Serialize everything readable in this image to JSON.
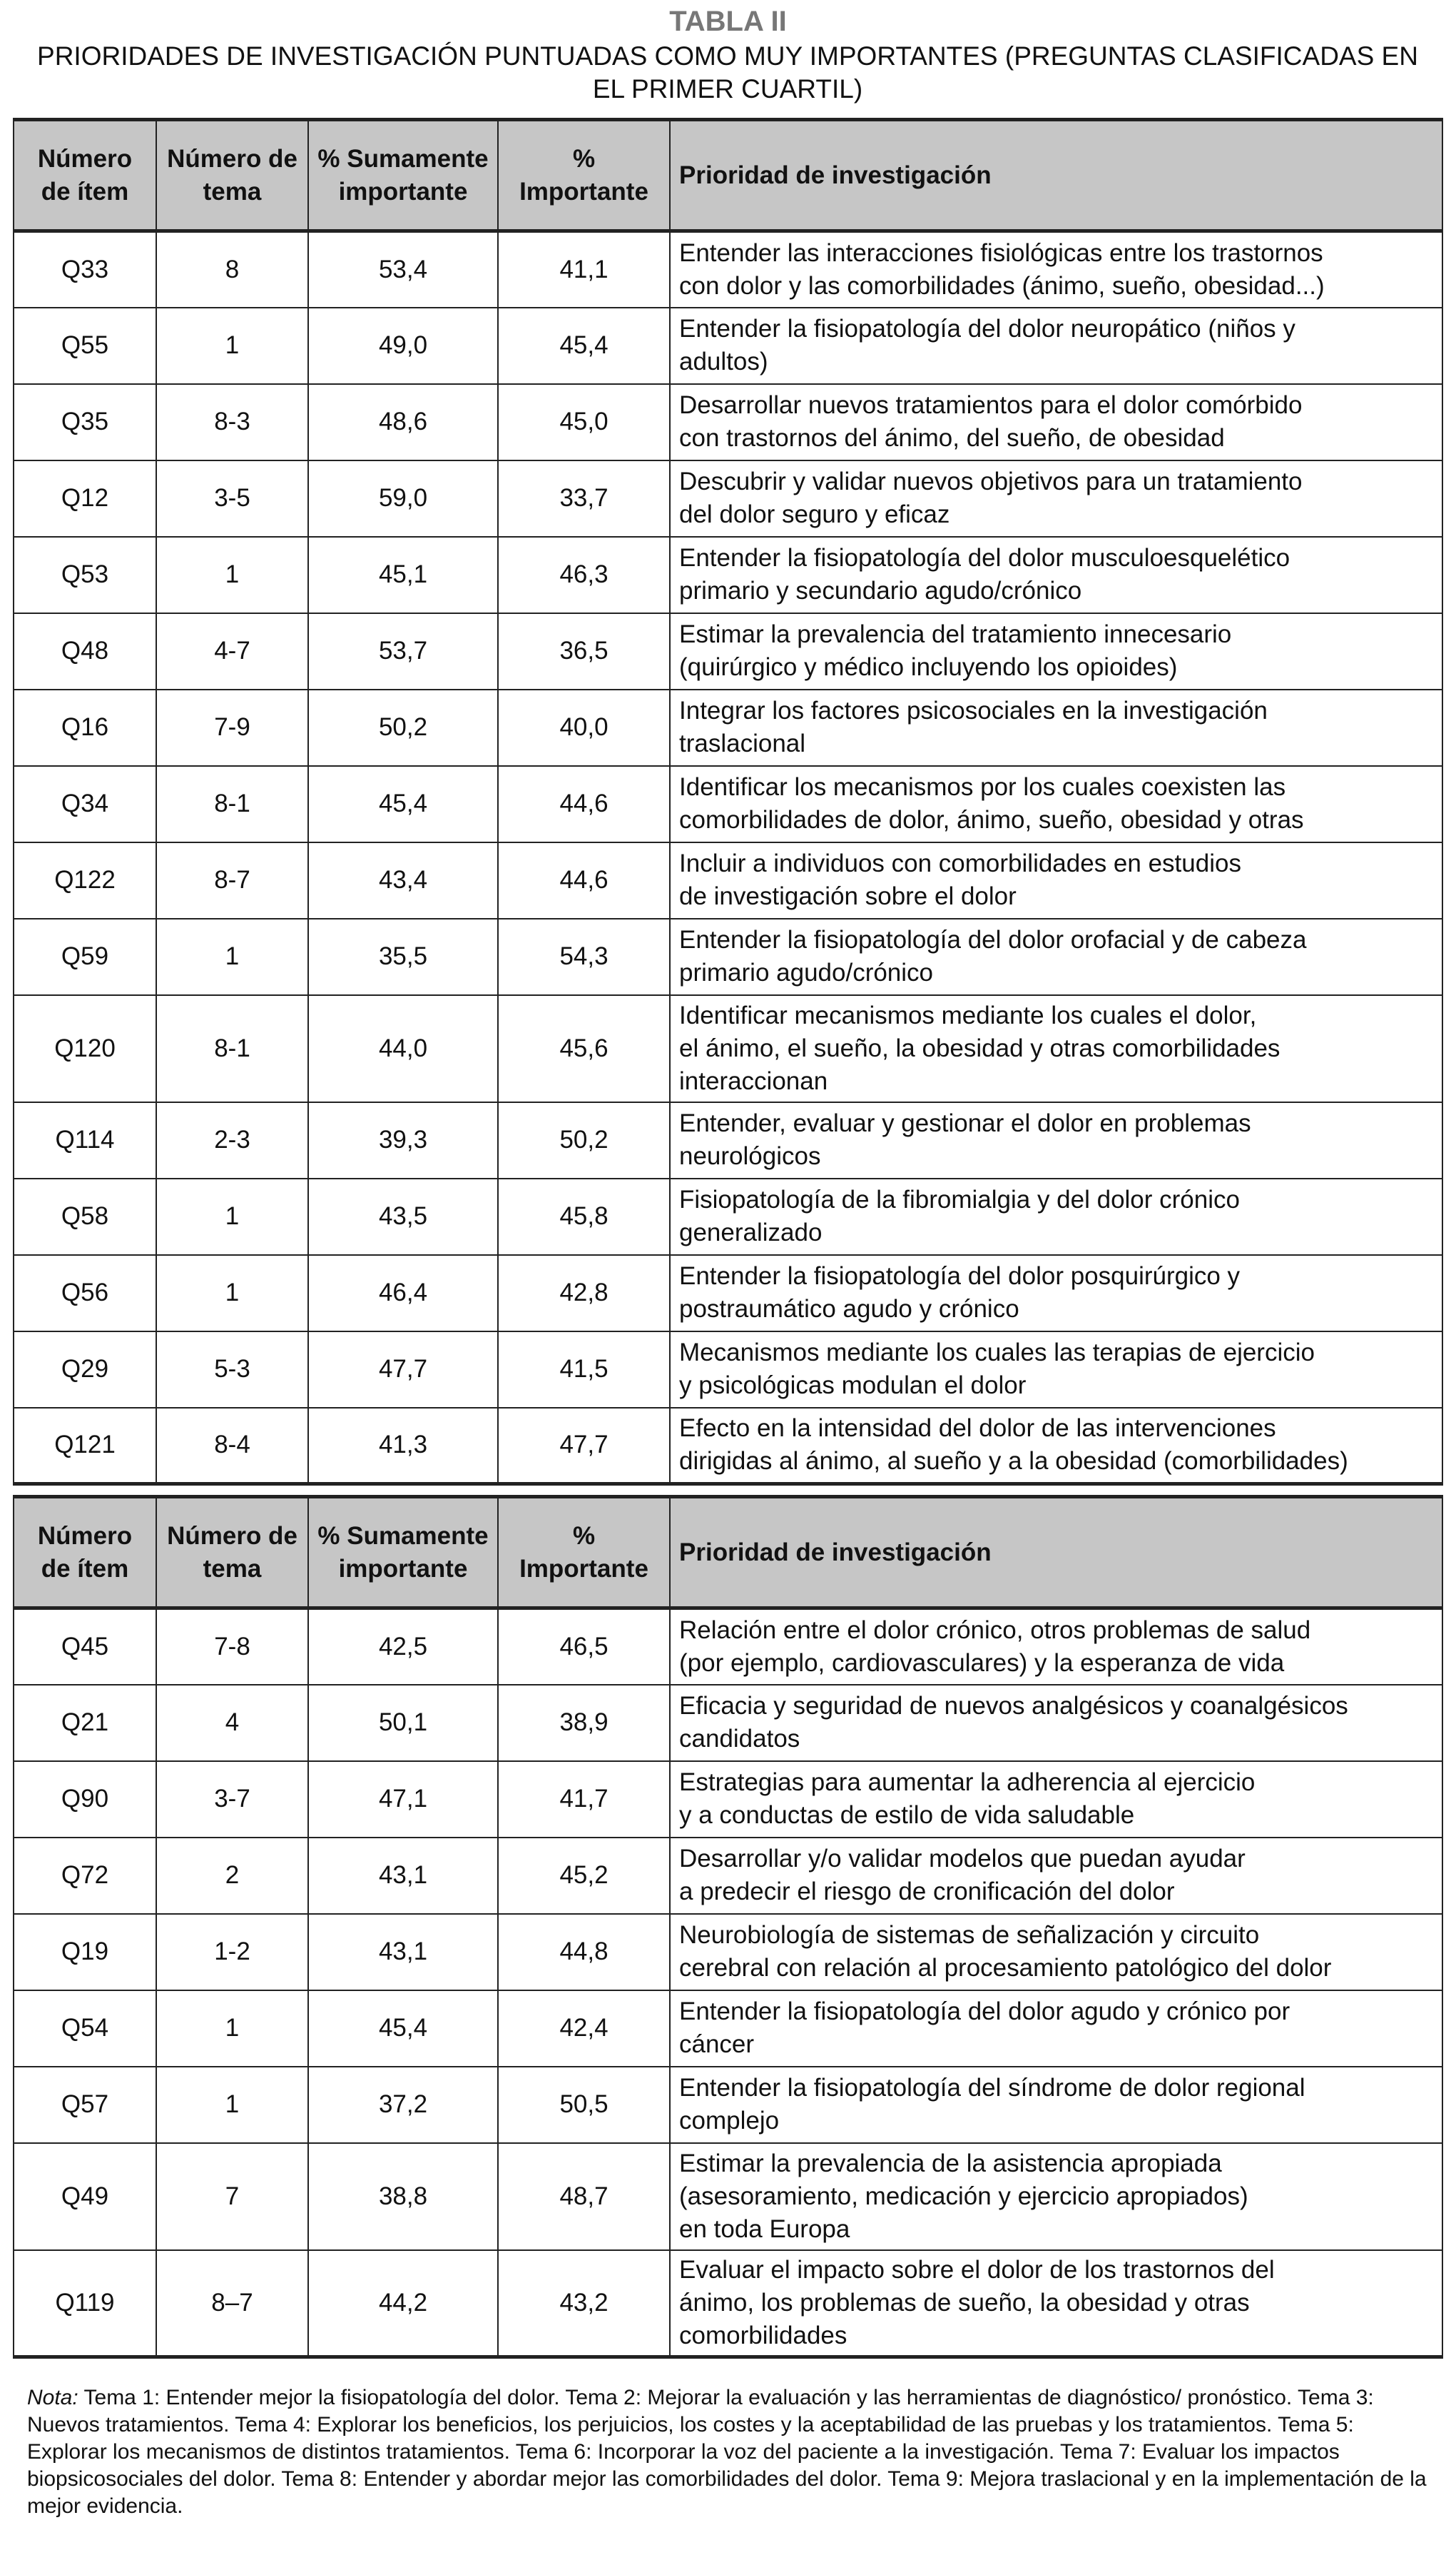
{
  "title": "TABLA II",
  "subtitle": "PRIORIDADES DE INVESTIGACIÓN PUNTUADAS COMO MUY IMPORTANTES (PREGUNTAS CLASIFICADAS EN EL PRIMER CUARTIL)",
  "headers": [
    "Número de ítem",
    "Número de tema",
    "% Sumamente importante",
    "% Importante",
    "Prioridad de investigación"
  ],
  "table1": [
    [
      "Q33",
      "8",
      "53,4",
      "41,1",
      "Entender las interacciones fisiológicas entre los trastornos\ncon dolor y las comorbilidades (ánimo, sueño, obesidad...)"
    ],
    [
      "Q55",
      "1",
      "49,0",
      "45,4",
      "Entender la fisiopatología del dolor neuropático (niños y\nadultos)"
    ],
    [
      "Q35",
      "8-3",
      "48,6",
      "45,0",
      "Desarrollar nuevos tratamientos para el dolor comórbido\ncon trastornos del ánimo, del sueño, de obesidad"
    ],
    [
      "Q12",
      "3-5",
      "59,0",
      "33,7",
      "Descubrir y validar nuevos objetivos para un tratamiento\ndel dolor seguro y eficaz"
    ],
    [
      "Q53",
      "1",
      "45,1",
      "46,3",
      "Entender la fisiopatología del dolor musculoesquelético\nprimario y secundario agudo/crónico"
    ],
    [
      "Q48",
      "4-7",
      "53,7",
      "36,5",
      "Estimar la prevalencia del tratamiento innecesario\n(quirúrgico y médico incluyendo los opioides)"
    ],
    [
      "Q16",
      "7-9",
      "50,2",
      "40,0",
      "Integrar los factores psicosociales en la investigación\ntraslacional"
    ],
    [
      "Q34",
      "8-1",
      "45,4",
      "44,6",
      "Identificar los mecanismos por los cuales coexisten las\ncomorbilidades de dolor, ánimo, sueño, obesidad y otras"
    ],
    [
      "Q122",
      "8-7",
      "43,4",
      "44,6",
      "Incluir a individuos con comorbilidades en estudios\nde investigación sobre el dolor"
    ],
    [
      "Q59",
      "1",
      "35,5",
      "54,3",
      "Entender la fisiopatología del dolor orofacial y de cabeza\nprimario agudo/crónico"
    ],
    [
      "Q120",
      "8-1",
      "44,0",
      "45,6",
      "Identificar mecanismos mediante los cuales el dolor,\nel ánimo, el sueño, la obesidad y otras comorbilidades\ninteraccionan"
    ],
    [
      "Q114",
      "2-3",
      "39,3",
      "50,2",
      "Entender, evaluar y gestionar el dolor en problemas\nneurológicos"
    ],
    [
      "Q58",
      "1",
      "43,5",
      "45,8",
      "Fisiopatología de la fibromialgia y del dolor crónico\ngeneralizado"
    ],
    [
      "Q56",
      "1",
      "46,4",
      "42,8",
      "Entender la fisiopatología del dolor posquirúrgico y\npostraumático agudo y crónico"
    ],
    [
      "Q29",
      "5-3",
      "47,7",
      "41,5",
      "Mecanismos mediante los cuales las terapias de ejercicio\ny psicológicas modulan el dolor"
    ],
    [
      "Q121",
      "8-4",
      "41,3",
      "47,7",
      "Efecto en la intensidad del dolor de las intervenciones\ndirigidas al ánimo, al sueño y a la obesidad (comorbilidades)"
    ]
  ],
  "table2": [
    [
      "Q45",
      "7-8",
      "42,5",
      "46,5",
      "Relación entre el dolor crónico, otros problemas de salud\n(por ejemplo, cardiovasculares) y la esperanza de vida"
    ],
    [
      "Q21",
      "4",
      "50,1",
      "38,9",
      "Eficacia y seguridad de nuevos analgésicos y coanalgésicos\ncandidatos"
    ],
    [
      "Q90",
      "3-7",
      "47,1",
      "41,7",
      "Estrategias para aumentar la adherencia al ejercicio\ny a conductas de estilo de vida saludable"
    ],
    [
      "Q72",
      "2",
      "43,1",
      "45,2",
      "Desarrollar y/o validar modelos que puedan ayudar\na predecir el riesgo de cronificación del dolor"
    ],
    [
      "Q19",
      "1-2",
      "43,1",
      "44,8",
      "Neurobiología de sistemas de señalización y circuito\ncerebral con relación al procesamiento patológico del dolor"
    ],
    [
      "Q54",
      "1",
      "45,4",
      "42,4",
      "Entender la fisiopatología del dolor agudo y crónico por\ncáncer"
    ],
    [
      "Q57",
      "1",
      "37,2",
      "50,5",
      "Entender la fisiopatología del síndrome de dolor regional\ncomplejo"
    ],
    [
      "Q49",
      "7",
      "38,8",
      "48,7",
      "Estimar la prevalencia de la asistencia apropiada\n(asesoramiento, medicación y ejercicio apropiados)\nen toda Europa"
    ],
    [
      "Q119",
      "8–7",
      "44,2",
      "43,2",
      "Evaluar el impacto sobre el dolor de los trastornos del\nánimo, los problemas de sueño, la obesidad y otras\ncomorbilidades"
    ]
  ],
  "note": {
    "label": "Nota:",
    "text": " Tema 1: Entender mejor la fisiopatología del dolor. Tema 2: Mejorar la evaluación y las herramientas de diagnóstico/ pronóstico. Tema 3: Nuevos tratamientos. Tema 4: Explorar los beneficios, los perjuicios, los costes y la aceptabilidad de las pruebas y los tratamientos. Tema 5: Explorar los mecanismos de distintos tratamientos. Tema 6: Incorporar la voz del paciente a la investigación. Tema 7: Evaluar los impactos biopsicosociales del dolor. Tema 8: Entender y abordar mejor las comorbilidades del dolor. Tema 9: Mejora traslacional y en la implementación de la mejor evidencia."
  }
}
